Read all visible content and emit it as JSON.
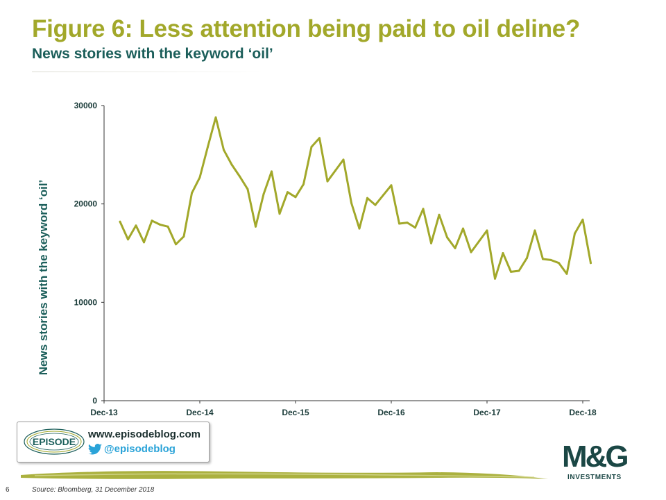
{
  "header": {
    "title": "Figure 6: Less attention being paid to oil deline?",
    "subtitle": "News stories with the keyword ‘oil’"
  },
  "chart_data": {
    "type": "line",
    "ylabel": "News stories with the keyword ‘oil’",
    "xlabel": "",
    "ylim": [
      0,
      30000
    ],
    "y_ticks": [
      "0",
      "10000",
      "20000",
      "30000"
    ],
    "x_ticks": [
      "Dec-13",
      "Dec-14",
      "Dec-15",
      "Dec-16",
      "Dec-17",
      "Dec-18"
    ],
    "grid": false,
    "series": [
      {
        "color": "#a2a82a",
        "x": [
          "Feb-14",
          "Mar-14",
          "Apr-14",
          "May-14",
          "Jun-14",
          "Jul-14",
          "Aug-14",
          "Sep-14",
          "Oct-14",
          "Nov-14",
          "Dec-14",
          "Jan-15",
          "Feb-15",
          "Mar-15",
          "Apr-15",
          "May-15",
          "Jun-15",
          "Jul-15",
          "Aug-15",
          "Sep-15",
          "Oct-15",
          "Nov-15",
          "Dec-15",
          "Jan-16",
          "Feb-16",
          "Mar-16",
          "Apr-16",
          "May-16",
          "Jun-16",
          "Jul-16",
          "Aug-16",
          "Sep-16",
          "Oct-16",
          "Nov-16",
          "Dec-16",
          "Jan-17",
          "Feb-17",
          "Mar-17",
          "Apr-17",
          "May-17",
          "Jun-17",
          "Jul-17",
          "Aug-17",
          "Sep-17",
          "Oct-17",
          "Nov-17",
          "Dec-17",
          "Jan-18",
          "Feb-18",
          "Mar-18",
          "Apr-18",
          "May-18",
          "Jun-18",
          "Jul-18",
          "Aug-18",
          "Sep-18",
          "Oct-18",
          "Nov-18",
          "Dec-18",
          "Jan-19"
        ],
        "values": [
          18200,
          16400,
          17800,
          16100,
          18300,
          17900,
          17700,
          15900,
          16700,
          21100,
          22700,
          25800,
          28800,
          25500,
          24000,
          22800,
          21500,
          17700,
          21000,
          23300,
          19000,
          21200,
          20700,
          22000,
          25800,
          26700,
          22300,
          23400,
          24500,
          20100,
          17500,
          20600,
          19900,
          20900,
          21900,
          18000,
          18100,
          17600,
          19500,
          16000,
          18900,
          16600,
          15500,
          17500,
          15100,
          16200,
          17300,
          12400,
          15000,
          13100,
          13200,
          14500,
          17300,
          14400,
          14300,
          14000,
          12900,
          17000,
          18400,
          14000
        ]
      }
    ]
  },
  "logos": {
    "episode_badge": "EPISODE",
    "blog_url": "www.episodeblog.com",
    "twitter_handle": "@episodeblog",
    "twitter_icon": "twitter-bird-icon",
    "mg_letters": "M&G",
    "mg_investments": "INVESTMENTS"
  },
  "footer": {
    "page_number": "6",
    "source": "Source: Bloomberg, 31 December 2018"
  }
}
